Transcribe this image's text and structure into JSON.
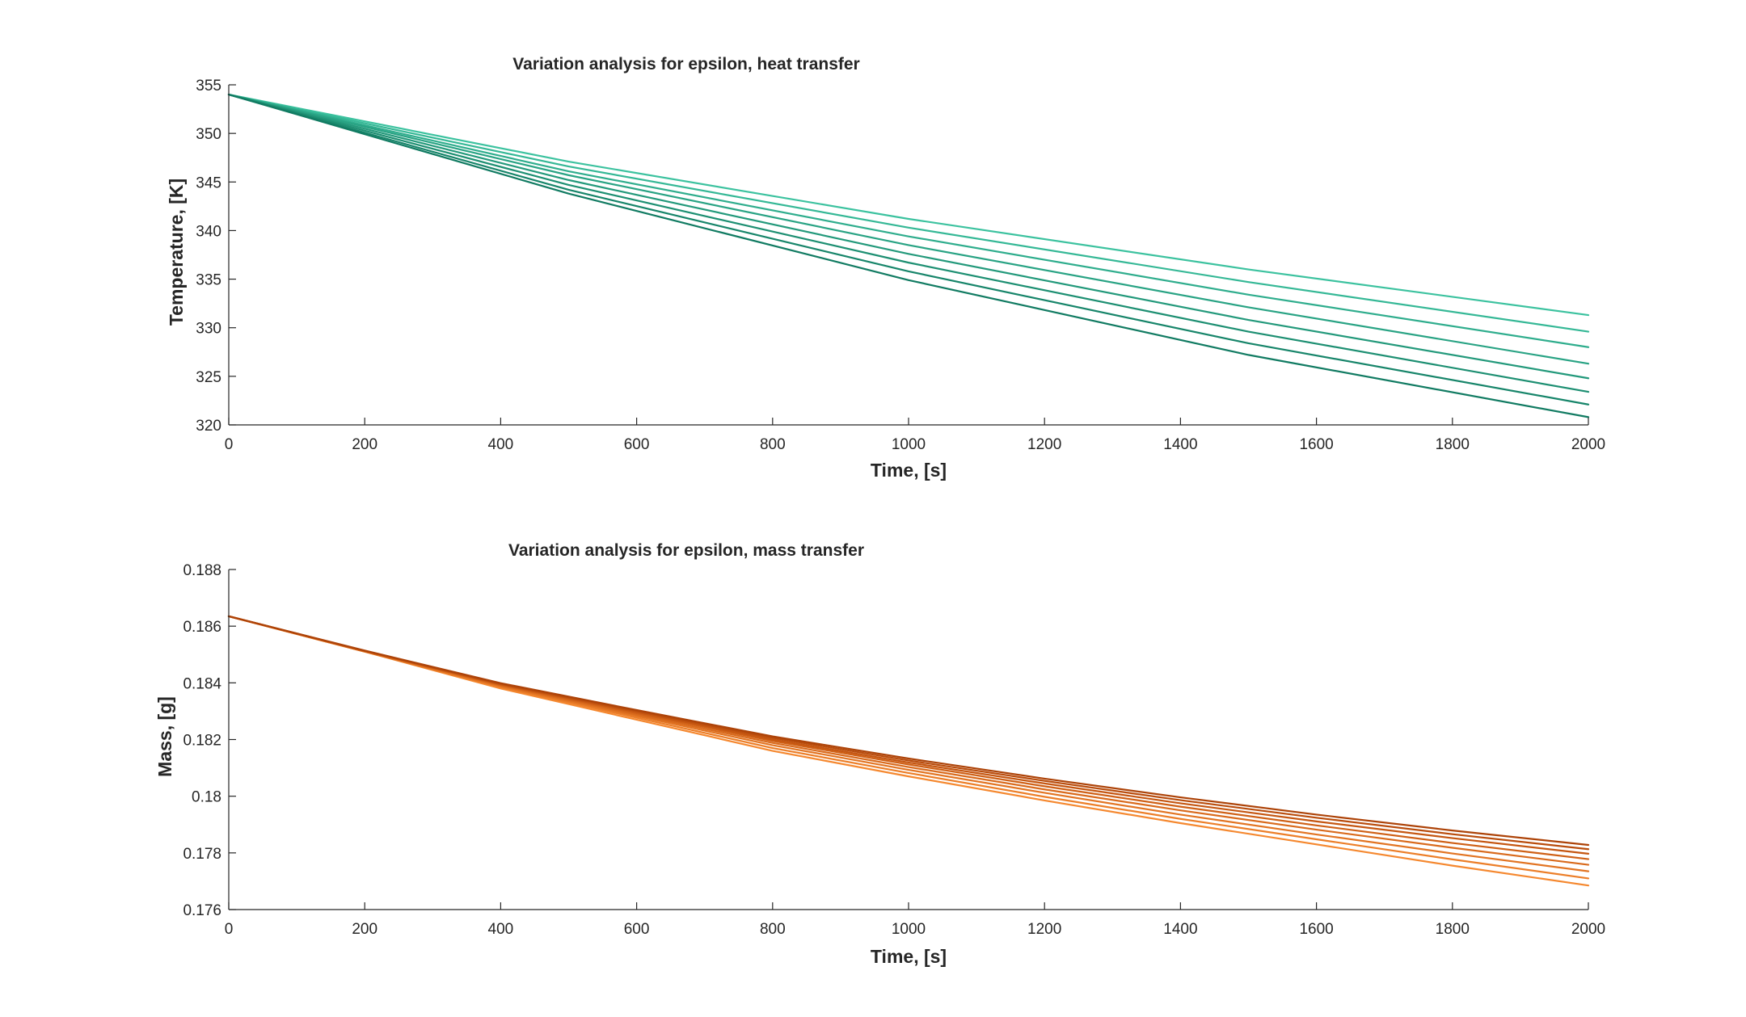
{
  "chart_data": [
    {
      "type": "line",
      "title": "Variation analysis for epsilon, heat transfer",
      "xlabel": "Time, [s]",
      "ylabel": "Temperature, [K]",
      "xlim": [
        0,
        2000
      ],
      "ylim": [
        320,
        355
      ],
      "xticks": [
        0,
        200,
        400,
        600,
        800,
        1000,
        1200,
        1400,
        1600,
        1800,
        2000
      ],
      "yticks": [
        320,
        325,
        330,
        335,
        340,
        345,
        350,
        355
      ],
      "xtick_labels": [
        "0",
        "200",
        "400",
        "600",
        "800",
        "1000",
        "1200",
        "1400",
        "1600",
        "1800",
        "2000"
      ],
      "ytick_labels": [
        "320",
        "325",
        "330",
        "335",
        "340",
        "345",
        "350",
        "355"
      ],
      "grid": false,
      "legend": "none",
      "x": [
        0,
        500,
        1000,
        1500,
        2000
      ],
      "series": [
        {
          "color": "#3cc29f",
          "values": [
            354.0,
            347.1,
            341.2,
            336.0,
            331.3
          ]
        },
        {
          "color": "#35b896",
          "values": [
            354.0,
            346.6,
            340.3,
            334.7,
            329.6
          ]
        },
        {
          "color": "#2fad8d",
          "values": [
            354.0,
            346.1,
            339.4,
            333.4,
            328.0
          ]
        },
        {
          "color": "#29a384",
          "values": [
            354.0,
            345.7,
            338.5,
            332.1,
            326.3
          ]
        },
        {
          "color": "#23997b",
          "values": [
            354.0,
            345.2,
            337.6,
            330.8,
            324.8
          ]
        },
        {
          "color": "#1d8f72",
          "values": [
            354.0,
            344.7,
            336.7,
            329.6,
            323.4
          ]
        },
        {
          "color": "#17856a",
          "values": [
            354.0,
            344.2,
            335.8,
            328.4,
            322.1
          ]
        },
        {
          "color": "#117b62",
          "values": [
            354.0,
            343.8,
            334.9,
            327.2,
            320.8
          ]
        }
      ]
    },
    {
      "type": "line",
      "title": "Variation analysis for epsilon, mass transfer",
      "xlabel": "Time, [s]",
      "ylabel": "Mass, [g]",
      "xlim": [
        0,
        2000
      ],
      "ylim": [
        0.176,
        0.188
      ],
      "xticks": [
        0,
        200,
        400,
        600,
        800,
        1000,
        1200,
        1400,
        1600,
        1800,
        2000
      ],
      "yticks": [
        0.176,
        0.178,
        0.18,
        0.182,
        0.184,
        0.186,
        0.188
      ],
      "xtick_labels": [
        "0",
        "200",
        "400",
        "600",
        "800",
        "1000",
        "1200",
        "1400",
        "1600",
        "1800",
        "2000"
      ],
      "ytick_labels": [
        "0.176",
        "0.178",
        "0.18",
        "0.182",
        "0.184",
        "0.186",
        "0.188"
      ],
      "grid": false,
      "legend": "none",
      "x": [
        0,
        200,
        400,
        600,
        800,
        1000,
        1200,
        1400,
        1600,
        1800,
        2000
      ],
      "series": [
        {
          "color": "#f5882f",
          "values": [
            0.18635,
            0.1851,
            0.1838,
            0.1827,
            0.1816,
            0.1807,
            0.17985,
            0.17905,
            0.1783,
            0.17755,
            0.17685
          ]
        },
        {
          "color": "#ec7e28",
          "values": [
            0.18635,
            0.1851,
            0.18385,
            0.18277,
            0.1817,
            0.18082,
            0.17998,
            0.1792,
            0.17848,
            0.17777,
            0.1771
          ]
        },
        {
          "color": "#e27422",
          "values": [
            0.18635,
            0.1851,
            0.18388,
            0.18283,
            0.1818,
            0.18093,
            0.18012,
            0.17935,
            0.17865,
            0.17798,
            0.17735
          ]
        },
        {
          "color": "#d96a1c",
          "values": [
            0.18635,
            0.18512,
            0.18391,
            0.18288,
            0.18188,
            0.18103,
            0.18024,
            0.1795,
            0.17882,
            0.17818,
            0.17758
          ]
        },
        {
          "color": "#cf6016",
          "values": [
            0.18635,
            0.18512,
            0.18393,
            0.18293,
            0.18195,
            0.18112,
            0.18035,
            0.17963,
            0.17897,
            0.17835,
            0.17778
          ]
        },
        {
          "color": "#c55611",
          "values": [
            0.18635,
            0.18513,
            0.18395,
            0.18297,
            0.182,
            0.18119,
            0.18045,
            0.17975,
            0.17911,
            0.17852,
            0.17797
          ]
        },
        {
          "color": "#b94c0c",
          "values": [
            0.18635,
            0.18513,
            0.18397,
            0.18301,
            0.18206,
            0.18126,
            0.18054,
            0.17986,
            0.17924,
            0.17866,
            0.17813
          ]
        },
        {
          "color": "#ad4308",
          "values": [
            0.18635,
            0.18514,
            0.18399,
            0.18304,
            0.18211,
            0.18133,
            0.18062,
            0.17996,
            0.17935,
            0.17879,
            0.17828
          ]
        }
      ]
    }
  ]
}
